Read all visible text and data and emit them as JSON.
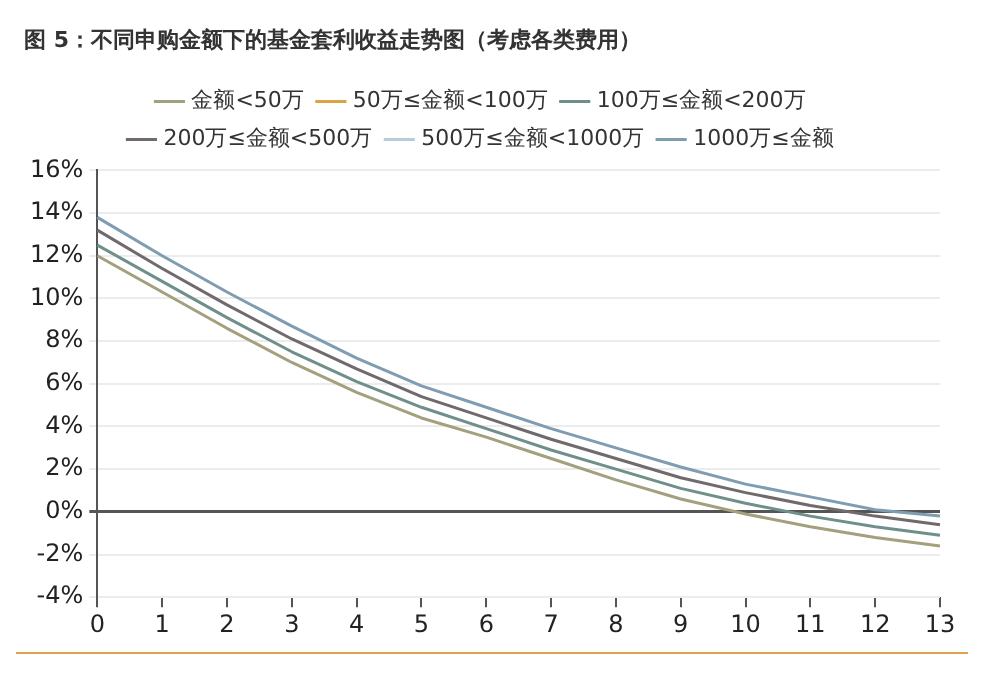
{
  "chart_data": {
    "type": "line",
    "title": "图 5：不同申购金额下的基金套利收益走势图（考虑各类费用）",
    "x": [
      0,
      1,
      2,
      3,
      4,
      5,
      6,
      7,
      8,
      9,
      10,
      11,
      12,
      13
    ],
    "xlim": [
      0,
      13
    ],
    "xticks": [
      0,
      1,
      2,
      3,
      4,
      5,
      6,
      7,
      8,
      9,
      10,
      11,
      12,
      13
    ],
    "ylim": [
      -4,
      16
    ],
    "yticks": [
      {
        "value": -4,
        "label": "-4%"
      },
      {
        "value": -2,
        "label": "-2%"
      },
      {
        "value": 0,
        "label": "0%"
      },
      {
        "value": 2,
        "label": "2%"
      },
      {
        "value": 4,
        "label": "4%"
      },
      {
        "value": 6,
        "label": "6%"
      },
      {
        "value": 8,
        "label": "8%"
      },
      {
        "value": 10,
        "label": "10%"
      },
      {
        "value": 12,
        "label": "12%"
      },
      {
        "value": 14,
        "label": "14%"
      },
      {
        "value": 16,
        "label": "16%"
      }
    ],
    "grid": "y",
    "legend": "top",
    "marker": "none",
    "line_style": "solid",
    "series": [
      {
        "name": "金额<50万",
        "color": "#a3a07e",
        "values": [
          12.0,
          10.3,
          8.6,
          7.0,
          5.6,
          4.4,
          3.5,
          2.5,
          1.5,
          0.6,
          -0.1,
          -0.7,
          -1.2,
          -1.6
        ]
      },
      {
        "name": "50万≤金额<100万",
        "color": "#d9a441",
        "values": [
          null,
          null,
          null,
          null,
          null,
          null,
          null,
          null,
          null,
          null,
          null,
          null,
          null,
          null
        ]
      },
      {
        "name": "100万≤金额<200万",
        "color": "#6f8f8a",
        "values": [
          12.5,
          10.8,
          9.1,
          7.5,
          6.1,
          4.9,
          3.9,
          2.9,
          2.0,
          1.1,
          0.4,
          -0.2,
          -0.7,
          -1.1
        ]
      },
      {
        "name": "200万≤金额<500万",
        "color": "#706a6c",
        "values": [
          13.2,
          11.4,
          9.7,
          8.1,
          6.7,
          5.4,
          4.4,
          3.4,
          2.5,
          1.6,
          0.9,
          0.3,
          -0.2,
          -0.6
        ]
      },
      {
        "name": "500万≤金额<1000万",
        "color": "#b8cbdd",
        "values": [
          null,
          null,
          null,
          null,
          null,
          null,
          null,
          null,
          null,
          null,
          null,
          null,
          null,
          null
        ]
      },
      {
        "name": "1000万≤金额",
        "color": "#7f9db2",
        "values": [
          13.8,
          12.0,
          10.3,
          8.7,
          7.2,
          5.9,
          4.9,
          3.9,
          3.0,
          2.1,
          1.3,
          0.7,
          0.1,
          -0.2
        ]
      }
    ]
  }
}
